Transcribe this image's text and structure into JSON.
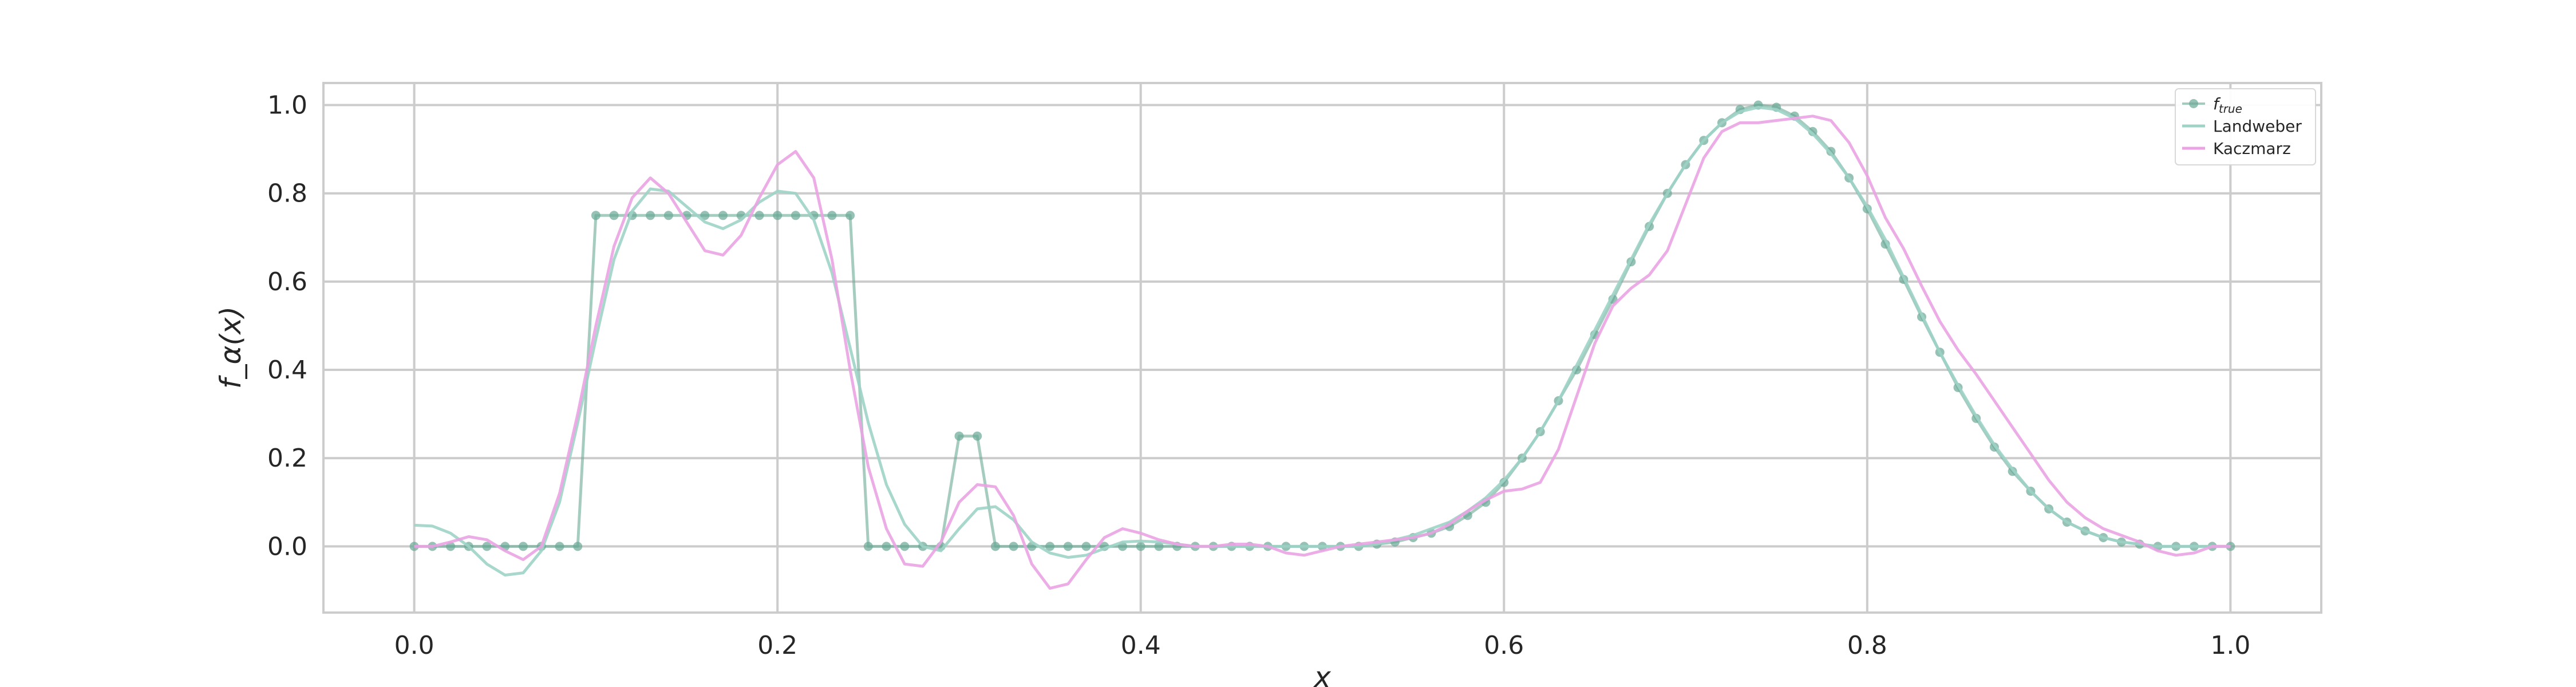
{
  "chart_data": {
    "type": "line",
    "title": "",
    "xlabel": "x",
    "ylabel": "f_α(x)",
    "xlim": [
      -0.05,
      1.05
    ],
    "ylim": [
      -0.15,
      1.05
    ],
    "grid": true,
    "legend_position": "top-right",
    "x_ticks": [
      0.0,
      0.2,
      0.4,
      0.6,
      0.8,
      1.0
    ],
    "x_tick_labels": [
      "0.0",
      "0.2",
      "0.4",
      "0.6",
      "0.8",
      "1.0"
    ],
    "y_ticks": [
      0.0,
      0.2,
      0.4,
      0.6,
      0.8,
      1.0
    ],
    "y_tick_labels": [
      "0.0",
      "0.2",
      "0.4",
      "0.6",
      "0.8",
      "1.0"
    ],
    "series": [
      {
        "name": "f_true",
        "legend_main": "f",
        "legend_sub": "true",
        "color": "#6aa895",
        "marker": "circle",
        "x": [
          0.0,
          0.01,
          0.02,
          0.03,
          0.04,
          0.05,
          0.06,
          0.07,
          0.08,
          0.09,
          0.1,
          0.11,
          0.12,
          0.13,
          0.14,
          0.15,
          0.16,
          0.17,
          0.18,
          0.19,
          0.2,
          0.21,
          0.22,
          0.23,
          0.24,
          0.25,
          0.26,
          0.27,
          0.28,
          0.29,
          0.3,
          0.31,
          0.32,
          0.33,
          0.34,
          0.35,
          0.36,
          0.37,
          0.38,
          0.39,
          0.4,
          0.41,
          0.42,
          0.43,
          0.44,
          0.45,
          0.46,
          0.47,
          0.48,
          0.49,
          0.5,
          0.51,
          0.52,
          0.53,
          0.54,
          0.55,
          0.56,
          0.57,
          0.58,
          0.59,
          0.6,
          0.61,
          0.62,
          0.63,
          0.64,
          0.65,
          0.66,
          0.67,
          0.68,
          0.69,
          0.7,
          0.71,
          0.72,
          0.73,
          0.74,
          0.75,
          0.76,
          0.77,
          0.78,
          0.79,
          0.8,
          0.81,
          0.82,
          0.83,
          0.84,
          0.85,
          0.86,
          0.87,
          0.88,
          0.89,
          0.9,
          0.91,
          0.92,
          0.93,
          0.94,
          0.95,
          0.96,
          0.97,
          0.98,
          0.99,
          1.0
        ],
        "y": [
          0,
          0,
          0,
          0,
          0,
          0,
          0,
          0,
          0,
          0,
          0.75,
          0.75,
          0.75,
          0.75,
          0.75,
          0.75,
          0.75,
          0.75,
          0.75,
          0.75,
          0.75,
          0.75,
          0.75,
          0.75,
          0.75,
          0,
          0,
          0,
          0,
          0,
          0.25,
          0.25,
          0,
          0,
          0,
          0,
          0,
          0,
          0,
          0,
          0,
          0,
          0,
          0,
          0,
          0,
          0,
          0,
          0,
          0,
          0,
          0,
          0,
          0.005,
          0.01,
          0.02,
          0.03,
          0.045,
          0.07,
          0.1,
          0.145,
          0.2,
          0.26,
          0.33,
          0.4,
          0.48,
          0.56,
          0.645,
          0.725,
          0.8,
          0.865,
          0.92,
          0.96,
          0.99,
          1.0,
          0.995,
          0.975,
          0.94,
          0.895,
          0.835,
          0.765,
          0.685,
          0.605,
          0.52,
          0.44,
          0.36,
          0.29,
          0.225,
          0.17,
          0.125,
          0.085,
          0.055,
          0.035,
          0.02,
          0.01,
          0.005,
          0,
          0,
          0,
          0,
          0
        ]
      },
      {
        "name": "Landweber",
        "color": "#9fd3c7",
        "marker": "none",
        "x": [
          0.0,
          0.01,
          0.02,
          0.03,
          0.04,
          0.05,
          0.06,
          0.07,
          0.08,
          0.09,
          0.1,
          0.11,
          0.12,
          0.13,
          0.14,
          0.15,
          0.16,
          0.17,
          0.18,
          0.19,
          0.2,
          0.21,
          0.22,
          0.23,
          0.24,
          0.25,
          0.26,
          0.27,
          0.28,
          0.29,
          0.3,
          0.31,
          0.32,
          0.33,
          0.34,
          0.35,
          0.36,
          0.37,
          0.38,
          0.39,
          0.4,
          0.41,
          0.42,
          0.43,
          0.44,
          0.45,
          0.46,
          0.47,
          0.48,
          0.49,
          0.5,
          0.51,
          0.52,
          0.53,
          0.54,
          0.55,
          0.56,
          0.57,
          0.58,
          0.59,
          0.6,
          0.61,
          0.62,
          0.63,
          0.64,
          0.65,
          0.66,
          0.67,
          0.68,
          0.69,
          0.7,
          0.71,
          0.72,
          0.73,
          0.74,
          0.75,
          0.76,
          0.77,
          0.78,
          0.79,
          0.8,
          0.81,
          0.82,
          0.83,
          0.84,
          0.85,
          0.86,
          0.87,
          0.88,
          0.89,
          0.9,
          0.91,
          0.92,
          0.93,
          0.94,
          0.95,
          0.96,
          0.97,
          0.98,
          0.99,
          1.0
        ],
        "y": [
          0.048,
          0.046,
          0.03,
          0.0,
          -0.04,
          -0.065,
          -0.06,
          -0.01,
          0.1,
          0.28,
          0.47,
          0.65,
          0.76,
          0.81,
          0.805,
          0.77,
          0.735,
          0.72,
          0.74,
          0.78,
          0.805,
          0.8,
          0.74,
          0.62,
          0.45,
          0.28,
          0.14,
          0.05,
          0.0,
          -0.01,
          0.04,
          0.085,
          0.09,
          0.06,
          0.01,
          -0.015,
          -0.025,
          -0.02,
          -0.005,
          0.01,
          0.012,
          0.01,
          0.005,
          0.0,
          0.0,
          0.0,
          0.0,
          0.0,
          0.0,
          0.0,
          0.0,
          0.0,
          0.0,
          0.005,
          0.015,
          0.025,
          0.04,
          0.055,
          0.08,
          0.11,
          0.15,
          0.2,
          0.26,
          0.33,
          0.41,
          0.49,
          0.57,
          0.65,
          0.73,
          0.8,
          0.865,
          0.92,
          0.96,
          0.985,
          0.995,
          0.99,
          0.97,
          0.935,
          0.89,
          0.835,
          0.77,
          0.695,
          0.61,
          0.525,
          0.44,
          0.365,
          0.295,
          0.23,
          0.175,
          0.125,
          0.085,
          0.055,
          0.035,
          0.02,
          0.01,
          0.005,
          0.0,
          0.0,
          0.0,
          0.0,
          0.0
        ]
      },
      {
        "name": "Kaczmarz",
        "color": "#eaa3e3",
        "marker": "none",
        "x": [
          0.0,
          0.01,
          0.02,
          0.03,
          0.04,
          0.05,
          0.06,
          0.07,
          0.08,
          0.09,
          0.1,
          0.11,
          0.12,
          0.13,
          0.14,
          0.15,
          0.16,
          0.17,
          0.18,
          0.19,
          0.2,
          0.21,
          0.22,
          0.23,
          0.24,
          0.25,
          0.26,
          0.27,
          0.28,
          0.29,
          0.3,
          0.31,
          0.32,
          0.33,
          0.34,
          0.35,
          0.36,
          0.37,
          0.38,
          0.39,
          0.4,
          0.41,
          0.42,
          0.43,
          0.44,
          0.45,
          0.46,
          0.47,
          0.48,
          0.49,
          0.5,
          0.51,
          0.52,
          0.53,
          0.54,
          0.55,
          0.56,
          0.57,
          0.58,
          0.59,
          0.6,
          0.61,
          0.62,
          0.63,
          0.64,
          0.65,
          0.66,
          0.67,
          0.68,
          0.69,
          0.7,
          0.71,
          0.72,
          0.73,
          0.74,
          0.75,
          0.76,
          0.77,
          0.78,
          0.79,
          0.8,
          0.81,
          0.82,
          0.83,
          0.84,
          0.85,
          0.86,
          0.87,
          0.88,
          0.89,
          0.9,
          0.91,
          0.92,
          0.93,
          0.94,
          0.95,
          0.96,
          0.97,
          0.98,
          0.99,
          1.0
        ],
        "y": [
          0.0,
          0.0,
          0.01,
          0.022,
          0.015,
          -0.01,
          -0.03,
          0.0,
          0.12,
          0.3,
          0.5,
          0.68,
          0.79,
          0.835,
          0.8,
          0.735,
          0.67,
          0.66,
          0.705,
          0.79,
          0.865,
          0.895,
          0.835,
          0.65,
          0.4,
          0.18,
          0.04,
          -0.04,
          -0.045,
          0.01,
          0.1,
          0.14,
          0.135,
          0.07,
          -0.04,
          -0.095,
          -0.085,
          -0.03,
          0.02,
          0.04,
          0.03,
          0.015,
          0.005,
          0.0,
          0.0,
          0.005,
          0.005,
          0.0,
          -0.015,
          -0.02,
          -0.01,
          0.0,
          0.005,
          0.01,
          0.015,
          0.02,
          0.03,
          0.05,
          0.08,
          0.105,
          0.125,
          0.13,
          0.145,
          0.22,
          0.34,
          0.46,
          0.545,
          0.585,
          0.615,
          0.67,
          0.775,
          0.88,
          0.94,
          0.96,
          0.96,
          0.965,
          0.97,
          0.975,
          0.965,
          0.915,
          0.84,
          0.745,
          0.675,
          0.59,
          0.51,
          0.445,
          0.39,
          0.33,
          0.27,
          0.21,
          0.15,
          0.1,
          0.065,
          0.04,
          0.025,
          0.01,
          -0.01,
          -0.02,
          -0.015,
          0.0,
          0.0
        ]
      }
    ]
  }
}
